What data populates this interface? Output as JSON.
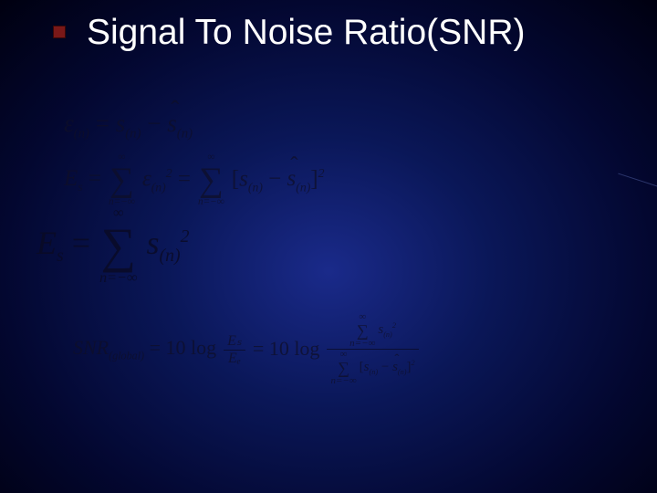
{
  "background": {
    "gradient_center_color": "#1a2a8a",
    "gradient_mid_color": "#0a1758",
    "gradient_outer_color": "#030730",
    "gradient_edge_color": "#000010"
  },
  "bullet_color": "#7a1818",
  "title": {
    "text": "Signal To Noise Ratio(SNR)",
    "color": "#ffffff",
    "fontsize": 39
  },
  "equation_color": "rgba(15,15,40,0.75)",
  "eq1": {
    "lhs_sym": "ε",
    "lhs_sub": "(n)",
    "eq": " = ",
    "t1_sym": "s",
    "t1_sub": "(n)",
    "minus": " − ",
    "t2_sym": "s",
    "t2_sub": "(n)"
  },
  "eq2": {
    "lhs_sym": "E",
    "lhs_sub": "s",
    "eq": " = ",
    "sum_upper": "∞",
    "sum_sym": "∑",
    "sum_lower": "n=−∞",
    "term1_sym": "ε",
    "term1_sub": "(n)",
    "term1_sup": "2",
    "eq2": " = ",
    "lbr": "[",
    "t2a_sym": "s",
    "t2a_sub": "(n)",
    "minus": " − ",
    "t2b_sym": "s",
    "t2b_sub": "(n)",
    "rbr": "]",
    "term2_sup": "2"
  },
  "eq3": {
    "lhs_sym": "E",
    "lhs_sub": "s",
    "eq": " = ",
    "sum_upper": "∞",
    "sum_sym": "∑",
    "sum_lower": "n=−∞",
    "term_sym": "s",
    "term_sub": "(n)",
    "term_sup": "2"
  },
  "eq4": {
    "lhs": "SNR",
    "lhs_sub": "(global)",
    "eq": " = ",
    "tenlog1": "10 log",
    "frac1_num": "Eₛ",
    "frac1_den": "Eₑ",
    "eq2": " = ",
    "tenlog2": "10 log",
    "sum_upper": "∞",
    "sum_sym": "∑",
    "sum_lower": "n=−∞",
    "num_sym": "s",
    "num_sub": "(n)",
    "num_sup": "2",
    "lbr": "[",
    "d1_sym": "s",
    "d1_sub": "(n)",
    "minus": " − ",
    "d2_sym": "s",
    "d2_sub": "(n)",
    "rbr": "]",
    "den_sup": "2"
  }
}
